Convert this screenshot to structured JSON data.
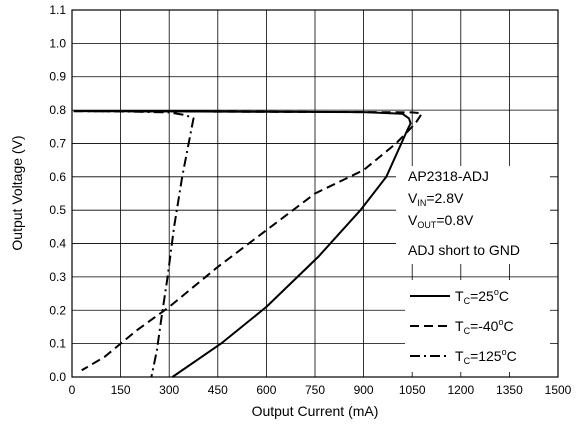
{
  "chart_data": {
    "type": "line",
    "xlabel": "Output Current (mA)",
    "ylabel": "Output Voltage (V)",
    "xlim": [
      0,
      1500
    ],
    "ylim": [
      0,
      1.1
    ],
    "x_ticks": [
      "0",
      "150",
      "300",
      "450",
      "600",
      "750",
      "900",
      "1050",
      "1200",
      "1350",
      "1500"
    ],
    "y_ticks": [
      "0.0",
      "0.1",
      "0.2",
      "0.3",
      "0.4",
      "0.5",
      "0.6",
      "0.7",
      "0.8",
      "0.9",
      "1.0",
      "1.1"
    ],
    "grid": true,
    "annotation": {
      "line1": "AP2318-ADJ",
      "vin_main": "V",
      "vin_sub": "IN",
      "vin_rest": "=2.8V",
      "vout_main": "V",
      "vout_sub": "OUT",
      "vout_rest": "=0.8V",
      "line4": "ADJ short to GND"
    },
    "legend_placement": "right",
    "legend": [
      {
        "t": "T",
        "sub": "C",
        "val": "=25",
        "sup": "o",
        "unit": "C",
        "dash": "solid"
      },
      {
        "t": "T",
        "sub": "C",
        "val": "=-40",
        "sup": "o",
        "unit": "C",
        "dash": "dashed"
      },
      {
        "t": "T",
        "sub": "C",
        "val": "=125",
        "sup": "o",
        "unit": "C",
        "dash": "dashdot"
      }
    ],
    "series": [
      {
        "dash": "solid",
        "points": [
          [
            5,
            0.797
          ],
          [
            300,
            0.796
          ],
          [
            600,
            0.795
          ],
          [
            900,
            0.794
          ],
          [
            1020,
            0.789
          ],
          [
            1040,
            0.775
          ],
          [
            1045,
            0.76
          ],
          [
            1035,
            0.74
          ],
          [
            970,
            0.6
          ],
          [
            890,
            0.5
          ],
          [
            760,
            0.36
          ],
          [
            600,
            0.21
          ],
          [
            460,
            0.1
          ],
          [
            310,
            0.0
          ]
        ]
      },
      {
        "dash": "dashed",
        "points": [
          [
            5,
            0.797
          ],
          [
            300,
            0.796
          ],
          [
            600,
            0.795
          ],
          [
            900,
            0.794
          ],
          [
            1050,
            0.793
          ],
          [
            1080,
            0.79
          ],
          [
            1060,
            0.76
          ],
          [
            1000,
            0.7
          ],
          [
            900,
            0.62
          ],
          [
            750,
            0.55
          ],
          [
            600,
            0.44
          ],
          [
            450,
            0.33
          ],
          [
            300,
            0.21
          ],
          [
            200,
            0.14
          ],
          [
            100,
            0.06
          ],
          [
            30,
            0.02
          ]
        ]
      },
      {
        "dash": "dashdot",
        "points": [
          [
            5,
            0.797
          ],
          [
            150,
            0.796
          ],
          [
            300,
            0.793
          ],
          [
            350,
            0.785
          ],
          [
            375,
            0.775
          ],
          [
            340,
            0.6
          ],
          [
            315,
            0.45
          ],
          [
            295,
            0.3
          ],
          [
            275,
            0.17
          ],
          [
            262,
            0.08
          ],
          [
            245,
            0.0
          ]
        ]
      }
    ]
  }
}
